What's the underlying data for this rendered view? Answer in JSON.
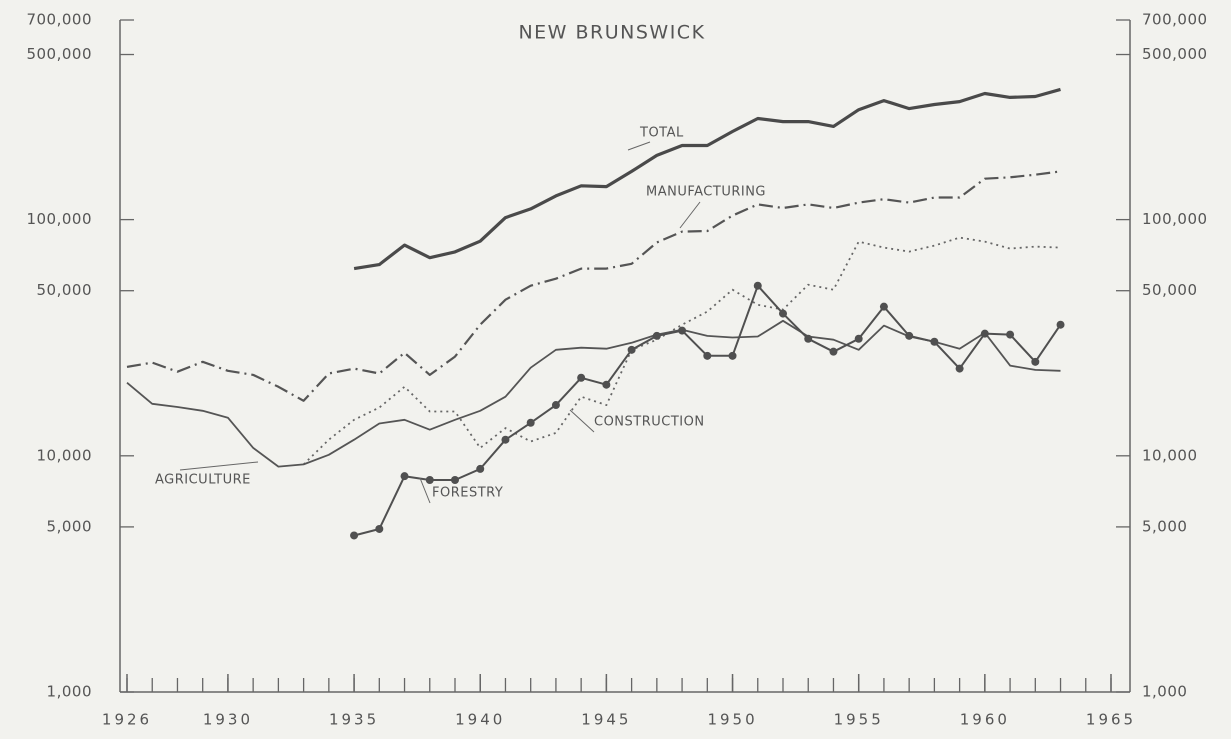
{
  "chart_data": {
    "type": "line",
    "title": "NEW BRUNSWICK",
    "log_y": true,
    "x": [
      1926,
      1927,
      1928,
      1929,
      1930,
      1931,
      1932,
      1933,
      1934,
      1935,
      1936,
      1937,
      1938,
      1939,
      1940,
      1941,
      1942,
      1943,
      1944,
      1945,
      1946,
      1947,
      1948,
      1949,
      1950,
      1951,
      1952,
      1953,
      1954,
      1955,
      1956,
      1957,
      1958,
      1959,
      1960,
      1961,
      1962,
      1963
    ],
    "xlim": [
      1926,
      1965
    ],
    "xticks": [
      1926,
      1930,
      1935,
      1940,
      1945,
      1950,
      1955,
      1960,
      1965
    ],
    "ylim": [
      1000,
      700000
    ],
    "yticks": [
      {
        "value": 1000,
        "label": "1,000"
      },
      {
        "value": 5000,
        "label": "5,000"
      },
      {
        "value": 10000,
        "label": "10,000"
      },
      {
        "value": 50000,
        "label": "50,000"
      },
      {
        "value": 100000,
        "label": "100,000"
      },
      {
        "value": 500000,
        "label": "500,000"
      },
      {
        "value": 700000,
        "label": "700,000"
      }
    ],
    "series": [
      {
        "name": "TOTAL",
        "color": "#4a4a4a",
        "style": "solid",
        "width": 3.2,
        "values": [
          null,
          null,
          null,
          null,
          null,
          null,
          null,
          null,
          null,
          62000,
          64500,
          78000,
          69000,
          73000,
          81000,
          102000,
          111000,
          126000,
          139000,
          138000,
          160000,
          187000,
          206000,
          206000,
          236000,
          268000,
          260000,
          260000,
          248000,
          292000,
          319000,
          295000,
          307000,
          316000,
          342000,
          329000,
          332000,
          356000
        ]
      },
      {
        "name": "MANUFACTURING",
        "color": "#555555",
        "style": "dashdot",
        "width": 2.2,
        "values": [
          23800,
          24800,
          22700,
          25000,
          22900,
          22000,
          19600,
          17100,
          22300,
          23400,
          22300,
          27300,
          22000,
          26300,
          35900,
          45800,
          52500,
          56200,
          62000,
          62000,
          65000,
          80000,
          89000,
          89500,
          104000,
          116000,
          112000,
          116000,
          112000,
          118000,
          122000,
          118000,
          124000,
          124000,
          149000,
          151000,
          155000,
          160000
        ]
      },
      {
        "name": "CONSTRUCTION",
        "color": "#666666",
        "style": "dotted",
        "width": 1.8,
        "values": [
          null,
          null,
          null,
          null,
          null,
          null,
          null,
          9200,
          11700,
          14200,
          16000,
          19600,
          15400,
          15400,
          10800,
          13100,
          11500,
          12500,
          17800,
          16400,
          28100,
          31000,
          35900,
          40800,
          50500,
          43600,
          41600,
          53000,
          50500,
          80700,
          76100,
          73200,
          77600,
          83900,
          80700,
          75400,
          76900,
          76100
        ]
      },
      {
        "name": "AGRICULTURE",
        "color": "#555555",
        "style": "solid",
        "width": 1.8,
        "values": [
          20400,
          16600,
          16100,
          15500,
          14500,
          10800,
          9000,
          9200,
          10100,
          11700,
          13700,
          14200,
          12900,
          14200,
          15500,
          17800,
          23600,
          28100,
          28700,
          28400,
          30100,
          32600,
          34200,
          32200,
          31700,
          32000,
          37300,
          32000,
          31000,
          28100,
          35600,
          32000,
          30400,
          28400,
          33200,
          24100,
          23100,
          22900
        ]
      },
      {
        "name": "FORESTRY",
        "color": "#505050",
        "style": "solid",
        "width": 2,
        "markers": true,
        "values": [
          null,
          null,
          null,
          null,
          null,
          null,
          null,
          null,
          null,
          4600,
          4900,
          8200,
          7900,
          7900,
          8800,
          11700,
          13800,
          16400,
          21400,
          20000,
          28100,
          32200,
          33900,
          26500,
          26500,
          52500,
          40000,
          31300,
          27600,
          31300,
          42800,
          32200,
          30400,
          23400,
          32900,
          32600,
          25000,
          35900
        ]
      }
    ]
  }
}
